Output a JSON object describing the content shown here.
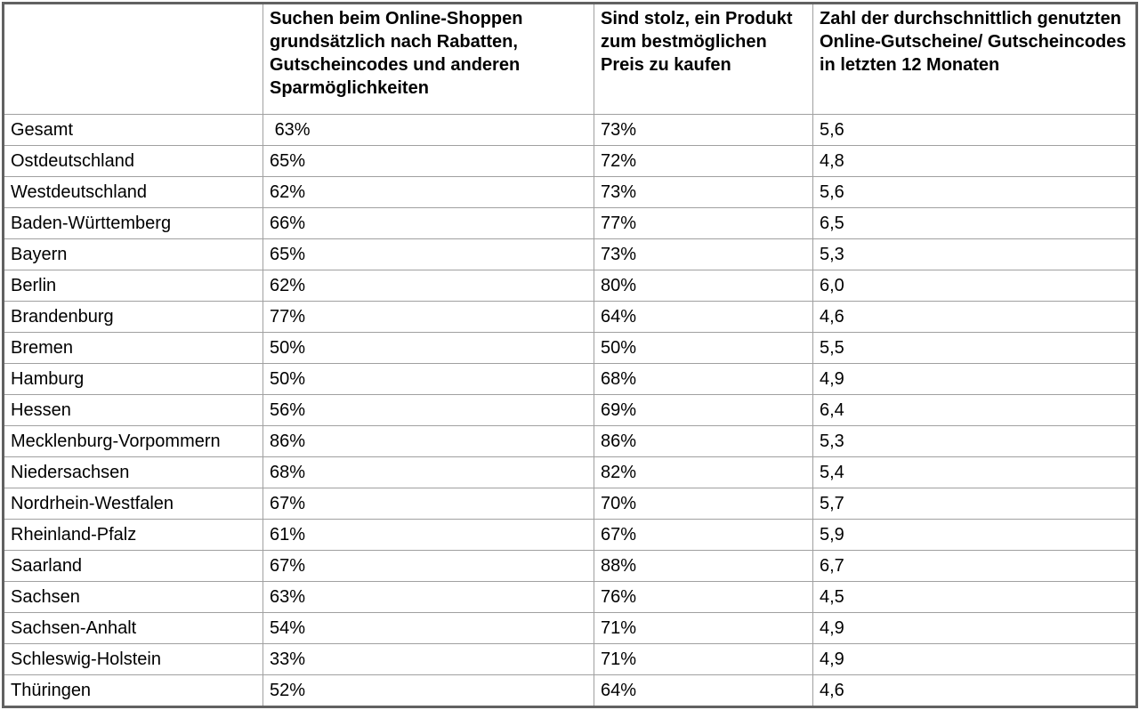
{
  "chart_data": {
    "type": "table",
    "columns": [
      "",
      "Suchen beim Online-Shoppen grundsätzlich nach Rabatten, Gutscheincodes und anderen Sparmöglichkeiten",
      "Sind stolz, ein Produkt zum bestmöglichen Preis zu kaufen",
      "Zahl der durchschnittlich genutzten Online-Gutscheine/ Gutscheincodes in letzten 12 Monaten"
    ],
    "rows": [
      [
        "Gesamt",
        " 63%",
        "73%",
        "5,6"
      ],
      [
        "Ostdeutschland",
        "65%",
        "72%",
        "4,8"
      ],
      [
        "Westdeutschland",
        "62%",
        "73%",
        "5,6"
      ],
      [
        "Baden-Württemberg",
        "66%",
        "77%",
        "6,5"
      ],
      [
        "Bayern",
        "65%",
        "73%",
        "5,3"
      ],
      [
        "Berlin",
        "62%",
        "80%",
        "6,0"
      ],
      [
        "Brandenburg",
        "77%",
        "64%",
        "4,6"
      ],
      [
        "Bremen",
        "50%",
        "50%",
        "5,5"
      ],
      [
        "Hamburg",
        "50%",
        "68%",
        "4,9"
      ],
      [
        "Hessen",
        "56%",
        "69%",
        "6,4"
      ],
      [
        "Mecklenburg-Vorpommern",
        "86%",
        "86%",
        "5,3"
      ],
      [
        "Niedersachsen",
        "68%",
        "82%",
        "5,4"
      ],
      [
        "Nordrhein-Westfalen",
        "67%",
        "70%",
        "5,7"
      ],
      [
        "Rheinland-Pfalz",
        "61%",
        "67%",
        "5,9"
      ],
      [
        "Saarland",
        "67%",
        "88%",
        "6,7"
      ],
      [
        "Sachsen",
        "63%",
        "76%",
        "4,5"
      ],
      [
        "Sachsen-Anhalt",
        "54%",
        "71%",
        "4,9"
      ],
      [
        "Schleswig-Holstein",
        "33%",
        "71%",
        "4,9"
      ],
      [
        "Thüringen",
        "52%",
        "64%",
        "4,6"
      ]
    ],
    "categories": [
      "Gesamt",
      "Ostdeutschland",
      "Westdeutschland",
      "Baden-Württemberg",
      "Bayern",
      "Berlin",
      "Brandenburg",
      "Bremen",
      "Hamburg",
      "Hessen",
      "Mecklenburg-Vorpommern",
      "Niedersachsen",
      "Nordrhein-Westfalen",
      "Rheinland-Pfalz",
      "Saarland",
      "Sachsen",
      "Sachsen-Anhalt",
      "Schleswig-Holstein",
      "Thüringen"
    ],
    "series": [
      {
        "name": "Suchen beim Online-Shoppen grundsätzlich nach Rabatten, Gutscheincodes und anderen Sparmöglichkeiten (%)",
        "values": [
          63,
          65,
          62,
          66,
          65,
          62,
          77,
          50,
          50,
          56,
          86,
          68,
          67,
          61,
          67,
          63,
          54,
          33,
          52
        ]
      },
      {
        "name": "Sind stolz, ein Produkt zum bestmöglichen Preis zu kaufen (%)",
        "values": [
          73,
          72,
          73,
          77,
          73,
          80,
          64,
          50,
          68,
          69,
          86,
          82,
          70,
          67,
          88,
          76,
          71,
          71,
          64
        ]
      },
      {
        "name": "Zahl der durchschnittlich genutzten Online-Gutscheine/ Gutscheincodes in letzten 12 Monaten",
        "values": [
          5.6,
          4.8,
          5.6,
          6.5,
          5.3,
          6.0,
          4.6,
          5.5,
          4.9,
          6.4,
          5.3,
          5.4,
          5.7,
          5.9,
          6.7,
          4.5,
          4.9,
          4.9,
          4.6
        ]
      }
    ],
    "title": "",
    "grid": true,
    "legend_position": "none"
  }
}
